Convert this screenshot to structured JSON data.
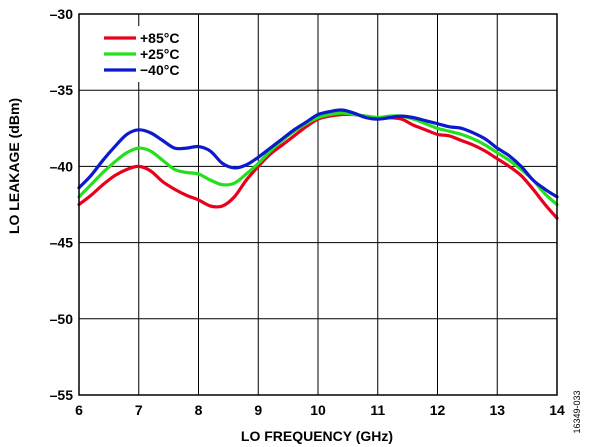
{
  "figure_id": "16349-033",
  "colors": {
    "+85°C": "#e8001c",
    "+25°C": "#22e01a",
    "−40°C": "#0a1acc"
  },
  "chart_data": {
    "type": "line",
    "xlabel": "LO FREQUENCY (GHz)",
    "ylabel": "LO LEAKAGE (dBm)",
    "xlim": [
      6,
      14
    ],
    "ylim": [
      -55,
      -30
    ],
    "xticks": [
      "6",
      "7",
      "8",
      "9",
      "10",
      "11",
      "12",
      "13",
      "14"
    ],
    "yticks": [
      "–30",
      "–35",
      "–40",
      "–45",
      "–50",
      "–55"
    ],
    "grid": true,
    "legend_position": "top-left",
    "series": [
      {
        "name": "+85°C",
        "color": "#e8001c",
        "points": [
          [
            6.0,
            -42.5
          ],
          [
            6.2,
            -41.9
          ],
          [
            6.4,
            -41.2
          ],
          [
            6.6,
            -40.6
          ],
          [
            6.8,
            -40.2
          ],
          [
            7.0,
            -40.0
          ],
          [
            7.2,
            -40.3
          ],
          [
            7.4,
            -41.0
          ],
          [
            7.6,
            -41.5
          ],
          [
            7.8,
            -41.9
          ],
          [
            8.0,
            -42.2
          ],
          [
            8.2,
            -42.6
          ],
          [
            8.4,
            -42.6
          ],
          [
            8.6,
            -42.0
          ],
          [
            8.8,
            -40.9
          ],
          [
            9.0,
            -40.0
          ],
          [
            9.2,
            -39.2
          ],
          [
            9.4,
            -38.6
          ],
          [
            9.6,
            -38.0
          ],
          [
            9.8,
            -37.4
          ],
          [
            10.0,
            -36.9
          ],
          [
            10.2,
            -36.7
          ],
          [
            10.4,
            -36.6
          ],
          [
            10.6,
            -36.6
          ],
          [
            10.8,
            -36.7
          ],
          [
            11.0,
            -36.8
          ],
          [
            11.2,
            -36.8
          ],
          [
            11.4,
            -36.9
          ],
          [
            11.6,
            -37.3
          ],
          [
            11.8,
            -37.6
          ],
          [
            12.0,
            -37.9
          ],
          [
            12.2,
            -38.0
          ],
          [
            12.4,
            -38.3
          ],
          [
            12.6,
            -38.6
          ],
          [
            12.8,
            -39.0
          ],
          [
            13.0,
            -39.5
          ],
          [
            13.2,
            -40.0
          ],
          [
            13.4,
            -40.6
          ],
          [
            13.6,
            -41.5
          ],
          [
            13.8,
            -42.5
          ],
          [
            14.0,
            -43.4
          ]
        ]
      },
      {
        "name": "+25°C",
        "color": "#22e01a",
        "points": [
          [
            6.0,
            -42.0
          ],
          [
            6.2,
            -41.2
          ],
          [
            6.4,
            -40.4
          ],
          [
            6.6,
            -39.7
          ],
          [
            6.8,
            -39.1
          ],
          [
            7.0,
            -38.8
          ],
          [
            7.2,
            -39.0
          ],
          [
            7.4,
            -39.6
          ],
          [
            7.6,
            -40.2
          ],
          [
            7.8,
            -40.4
          ],
          [
            8.0,
            -40.5
          ],
          [
            8.2,
            -40.9
          ],
          [
            8.4,
            -41.2
          ],
          [
            8.6,
            -41.1
          ],
          [
            8.8,
            -40.5
          ],
          [
            9.0,
            -39.8
          ],
          [
            9.2,
            -39.0
          ],
          [
            9.4,
            -38.3
          ],
          [
            9.6,
            -37.7
          ],
          [
            9.8,
            -37.2
          ],
          [
            10.0,
            -36.8
          ],
          [
            10.2,
            -36.6
          ],
          [
            10.4,
            -36.5
          ],
          [
            10.6,
            -36.6
          ],
          [
            10.8,
            -36.7
          ],
          [
            11.0,
            -36.8
          ],
          [
            11.2,
            -36.7
          ],
          [
            11.4,
            -36.7
          ],
          [
            11.6,
            -36.9
          ],
          [
            11.8,
            -37.2
          ],
          [
            12.0,
            -37.5
          ],
          [
            12.2,
            -37.7
          ],
          [
            12.4,
            -37.9
          ],
          [
            12.6,
            -38.2
          ],
          [
            12.8,
            -38.6
          ],
          [
            13.0,
            -39.1
          ],
          [
            13.2,
            -39.6
          ],
          [
            13.4,
            -40.2
          ],
          [
            13.6,
            -40.9
          ],
          [
            13.8,
            -41.8
          ],
          [
            14.0,
            -42.5
          ]
        ]
      },
      {
        "name": "−40°C",
        "color": "#0a1acc",
        "points": [
          [
            6.0,
            -41.4
          ],
          [
            6.2,
            -40.6
          ],
          [
            6.4,
            -39.6
          ],
          [
            6.6,
            -38.7
          ],
          [
            6.8,
            -37.9
          ],
          [
            7.0,
            -37.6
          ],
          [
            7.2,
            -37.8
          ],
          [
            7.4,
            -38.3
          ],
          [
            7.6,
            -38.8
          ],
          [
            7.8,
            -38.8
          ],
          [
            8.0,
            -38.7
          ],
          [
            8.2,
            -39.0
          ],
          [
            8.4,
            -39.8
          ],
          [
            8.6,
            -40.1
          ],
          [
            8.8,
            -39.9
          ],
          [
            9.0,
            -39.4
          ],
          [
            9.2,
            -38.8
          ],
          [
            9.4,
            -38.2
          ],
          [
            9.6,
            -37.6
          ],
          [
            9.8,
            -37.1
          ],
          [
            10.0,
            -36.6
          ],
          [
            10.2,
            -36.4
          ],
          [
            10.4,
            -36.3
          ],
          [
            10.6,
            -36.5
          ],
          [
            10.8,
            -36.8
          ],
          [
            11.0,
            -36.9
          ],
          [
            11.2,
            -36.8
          ],
          [
            11.4,
            -36.7
          ],
          [
            11.6,
            -36.8
          ],
          [
            11.8,
            -37.0
          ],
          [
            12.0,
            -37.2
          ],
          [
            12.2,
            -37.4
          ],
          [
            12.4,
            -37.5
          ],
          [
            12.6,
            -37.8
          ],
          [
            12.8,
            -38.2
          ],
          [
            13.0,
            -38.8
          ],
          [
            13.2,
            -39.3
          ],
          [
            13.4,
            -40.0
          ],
          [
            13.6,
            -40.9
          ],
          [
            13.8,
            -41.5
          ],
          [
            14.0,
            -42.0
          ]
        ]
      }
    ]
  }
}
